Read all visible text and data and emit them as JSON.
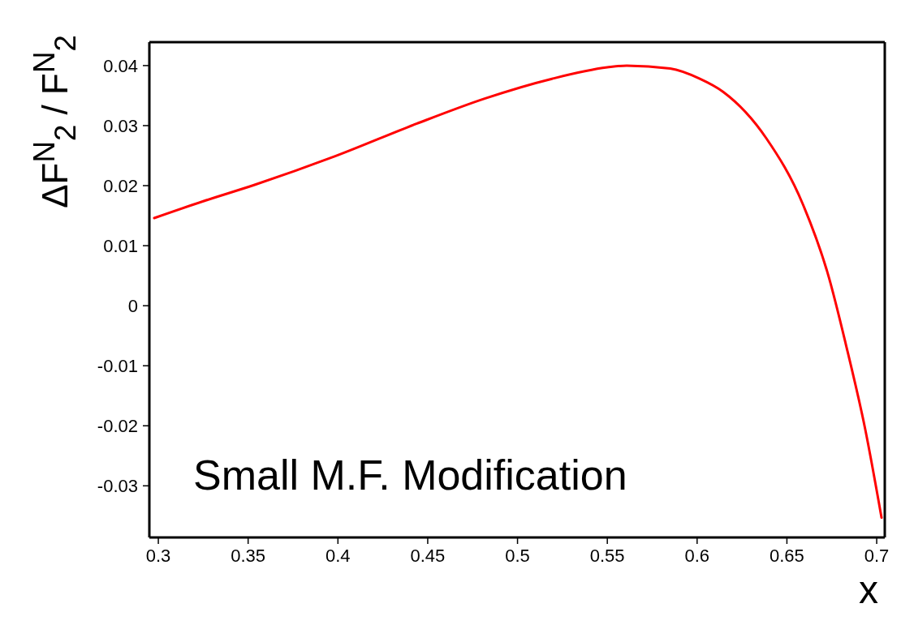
{
  "chart_data": {
    "type": "line",
    "xlabel": "x",
    "ylabel": "ΔF$^{N}$$_{2}$ / F$^{N}$$_{2}$",
    "annotations": [
      "Small M.F. Modification"
    ],
    "x": [
      0.2977,
      0.325,
      0.3533,
      0.3985,
      0.4437,
      0.4817,
      0.5192,
      0.55,
      0.5608,
      0.585,
      0.6015,
      0.6146,
      0.6385,
      0.6589,
      0.6734,
      0.6828,
      0.6937,
      0.7027
    ],
    "series": [
      {
        "color": "#ff0000",
        "values": [
          0.0146,
          0.0174,
          0.0201,
          0.0249,
          0.0303,
          0.0345,
          0.0378,
          0.0397,
          0.04,
          0.0395,
          0.0378,
          0.0356,
          0.0279,
          0.0169,
          0.0047,
          -0.0064,
          -0.0207,
          -0.0353
        ]
      }
    ],
    "xlim": [
      0.295,
      0.7045
    ],
    "xticks": [
      0.3,
      0.35,
      0.4,
      0.45,
      0.5,
      0.55,
      0.6,
      0.65,
      0.7
    ],
    "ylim": [
      -0.0386,
      0.0439
    ],
    "yticks": [
      -0.03,
      -0.02,
      -0.01,
      0,
      0.01,
      0.02,
      0.03,
      0.04
    ],
    "grid": false,
    "legend": false,
    "marker": "none",
    "line_style": "solid"
  }
}
